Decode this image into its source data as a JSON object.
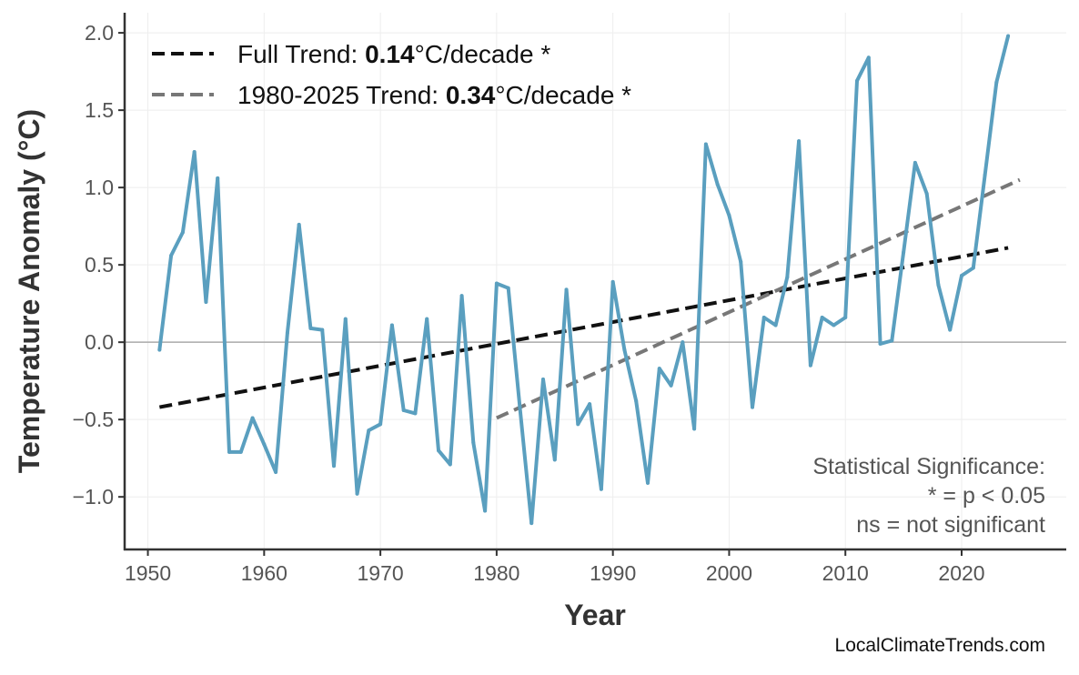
{
  "chart_data": {
    "type": "line",
    "xlabel": "Year",
    "ylabel": "Temperature Anomaly (°C)",
    "xlim": [
      1948,
      2029
    ],
    "ylim": [
      -1.34,
      2.13
    ],
    "grid": true,
    "legend_placement": "top-left",
    "x_ticks": [
      "1950",
      "1960",
      "1970",
      "1980",
      "1990",
      "2000",
      "2010",
      "2020"
    ],
    "y_ticks": [
      "−1.0",
      "−0.5",
      "0.0",
      "0.5",
      "1.0",
      "1.5",
      "2.0"
    ],
    "x": [
      1951,
      1952,
      1953,
      1954,
      1955,
      1956,
      1957,
      1958,
      1959,
      1960,
      1961,
      1962,
      1963,
      1964,
      1965,
      1966,
      1967,
      1968,
      1969,
      1970,
      1971,
      1972,
      1973,
      1974,
      1975,
      1976,
      1977,
      1978,
      1979,
      1980,
      1981,
      1982,
      1983,
      1984,
      1985,
      1986,
      1987,
      1988,
      1989,
      1990,
      1991,
      1992,
      1993,
      1994,
      1995,
      1996,
      1997,
      1998,
      1999,
      2000,
      2001,
      2002,
      2003,
      2004,
      2005,
      2006,
      2007,
      2008,
      2009,
      2010,
      2011,
      2012,
      2013,
      2014,
      2015,
      2016,
      2017,
      2018,
      2019,
      2020,
      2021,
      2022,
      2023,
      2024
    ],
    "values": [
      -0.05,
      0.56,
      0.71,
      1.23,
      0.26,
      1.06,
      -0.71,
      -0.71,
      -0.49,
      -0.66,
      -0.84,
      0.06,
      0.76,
      0.09,
      0.08,
      -0.8,
      0.15,
      -0.98,
      -0.57,
      -0.53,
      0.11,
      -0.44,
      -0.46,
      0.15,
      -0.7,
      -0.79,
      0.3,
      -0.65,
      -1.09,
      0.38,
      0.35,
      -0.42,
      -1.17,
      -0.24,
      -0.76,
      0.34,
      -0.53,
      -0.4,
      -0.95,
      0.39,
      -0.05,
      -0.38,
      -0.91,
      -0.17,
      -0.28,
      0.0,
      -0.56,
      1.28,
      1.02,
      0.82,
      0.52,
      -0.42,
      0.16,
      0.11,
      0.42,
      1.3,
      -0.15,
      0.16,
      0.11,
      0.16,
      1.69,
      1.84,
      -0.01,
      0.01,
      0.58,
      1.16,
      0.96,
      0.37,
      0.08,
      0.43,
      0.48,
      1.08,
      1.68,
      1.98
    ],
    "series_color": "#5a9fbf",
    "trends": [
      {
        "label_prefix": "Full Trend: ",
        "rate": "0.14",
        "label_suffix": "°C/decade *",
        "x": [
          1951,
          2024
        ],
        "y": [
          -0.42,
          0.61
        ],
        "color": "#111111"
      },
      {
        "label_prefix": "1980-2025 Trend: ",
        "rate": "0.34",
        "label_suffix": "°C/decade *",
        "x": [
          1980,
          2025
        ],
        "y": [
          -0.49,
          1.05
        ],
        "color": "#777777"
      }
    ],
    "annotation": [
      "Statistical Significance:",
      "* = p < 0.05",
      "ns = not significant"
    ]
  },
  "watermark": "LocalClimateTrends.com"
}
